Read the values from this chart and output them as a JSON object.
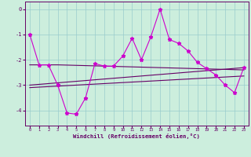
{
  "xlabel": "Windchill (Refroidissement éolien,°C)",
  "background_color": "#cceedd",
  "grid_color": "#99cccc",
  "line_color_main": "#cc00cc",
  "line_color_trend": "#660066",
  "x_ticks": [
    0,
    1,
    2,
    3,
    4,
    5,
    6,
    7,
    8,
    9,
    10,
    11,
    12,
    13,
    14,
    15,
    16,
    17,
    18,
    19,
    20,
    21,
    22,
    23
  ],
  "y_ticks": [
    0,
    -1,
    -2,
    -3,
    -4
  ],
  "ylim": [
    -4.6,
    0.3
  ],
  "xlim": [
    -0.5,
    23.5
  ],
  "series1": [
    -1.0,
    -2.2,
    -2.2,
    -3.0,
    -4.1,
    -4.15,
    -3.5,
    -2.15,
    -2.25,
    -2.25,
    -1.85,
    -1.15,
    -2.0,
    -1.1,
    0.0,
    -1.2,
    -1.35,
    -1.65,
    -2.1,
    -2.35,
    -2.6,
    -3.0,
    -3.3,
    -2.3
  ],
  "series2": [
    -2.2,
    -2.2,
    -2.2,
    -2.2,
    -2.21,
    -2.22,
    -2.23,
    -2.24,
    -2.25,
    -2.26,
    -2.27,
    -2.28,
    -2.29,
    -2.3,
    -2.31,
    -2.32,
    -2.33,
    -2.34,
    -2.35,
    -2.36,
    -2.37,
    -2.38,
    -2.39,
    -2.4
  ],
  "series3": [
    -3.0,
    -2.97,
    -2.94,
    -2.91,
    -2.88,
    -2.85,
    -2.82,
    -2.79,
    -2.76,
    -2.73,
    -2.7,
    -2.67,
    -2.64,
    -2.61,
    -2.58,
    -2.55,
    -2.52,
    -2.49,
    -2.46,
    -2.43,
    -2.4,
    -2.37,
    -2.34,
    -2.31
  ],
  "series4": [
    -3.1,
    -3.08,
    -3.06,
    -3.04,
    -3.02,
    -3.0,
    -2.98,
    -2.96,
    -2.94,
    -2.92,
    -2.9,
    -2.88,
    -2.86,
    -2.84,
    -2.82,
    -2.8,
    -2.78,
    -2.76,
    -2.74,
    -2.72,
    -2.7,
    -2.68,
    -2.66,
    -2.64
  ]
}
